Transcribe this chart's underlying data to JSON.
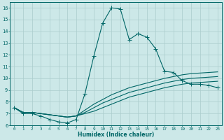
{
  "xlabel": "Humidex (Indice chaleur)",
  "bg_color": "#cce8e8",
  "grid_color": "#aacccc",
  "line_color": "#006666",
  "xlim": [
    -0.5,
    23.5
  ],
  "ylim": [
    6,
    16.5
  ],
  "xticks": [
    0,
    1,
    2,
    3,
    4,
    5,
    6,
    7,
    8,
    9,
    10,
    11,
    12,
    13,
    14,
    15,
    16,
    17,
    18,
    19,
    20,
    21,
    22,
    23
  ],
  "yticks": [
    6,
    7,
    8,
    9,
    10,
    11,
    12,
    13,
    14,
    15,
    16
  ],
  "s1_x": [
    0,
    1,
    2,
    3,
    4,
    5,
    6,
    7,
    8,
    9,
    10,
    11,
    12,
    13,
    14,
    15,
    16,
    17,
    18,
    19,
    20,
    21,
    22,
    23
  ],
  "s1_y": [
    7.5,
    7.0,
    7.0,
    6.8,
    6.5,
    6.3,
    6.2,
    6.5,
    8.7,
    11.9,
    14.7,
    16.0,
    15.9,
    13.3,
    13.8,
    13.5,
    12.5,
    10.6,
    10.5,
    9.8,
    9.5,
    9.5,
    9.4,
    9.2
  ],
  "s2_x": [
    0,
    1,
    2,
    3,
    4,
    5,
    6,
    7,
    8,
    9,
    10,
    11,
    12,
    13,
    14,
    15,
    16,
    17,
    18,
    19,
    20,
    21,
    22,
    23
  ],
  "s2_y": [
    7.5,
    7.1,
    7.1,
    7.0,
    6.9,
    6.8,
    6.7,
    6.8,
    7.0,
    7.2,
    7.5,
    7.8,
    8.1,
    8.4,
    8.6,
    8.8,
    9.0,
    9.2,
    9.35,
    9.5,
    9.6,
    9.65,
    9.7,
    9.75
  ],
  "s3_x": [
    0,
    1,
    2,
    3,
    4,
    5,
    6,
    7,
    8,
    9,
    10,
    11,
    12,
    13,
    14,
    15,
    16,
    17,
    18,
    19,
    20,
    21,
    22,
    23
  ],
  "s3_y": [
    7.5,
    7.1,
    7.1,
    7.0,
    6.9,
    6.8,
    6.7,
    6.8,
    7.1,
    7.5,
    7.9,
    8.2,
    8.5,
    8.8,
    9.0,
    9.2,
    9.4,
    9.6,
    9.75,
    9.9,
    10.0,
    10.05,
    10.1,
    10.15
  ],
  "s4_x": [
    0,
    1,
    2,
    3,
    4,
    5,
    6,
    7,
    8,
    9,
    10,
    11,
    12,
    13,
    14,
    15,
    16,
    17,
    18,
    19,
    20,
    21,
    22,
    23
  ],
  "s4_y": [
    7.5,
    7.1,
    7.1,
    7.0,
    6.9,
    6.8,
    6.7,
    6.8,
    7.3,
    7.8,
    8.2,
    8.6,
    8.9,
    9.2,
    9.4,
    9.6,
    9.8,
    10.0,
    10.15,
    10.3,
    10.4,
    10.45,
    10.5,
    10.55
  ],
  "lw": 0.8,
  "ms": 3
}
